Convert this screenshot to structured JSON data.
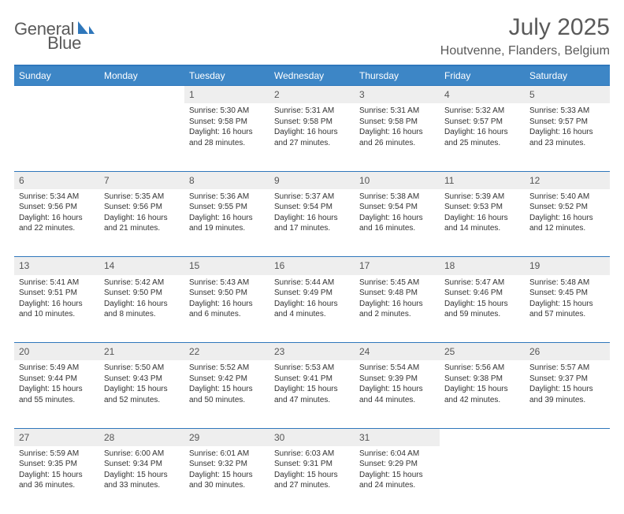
{
  "brand": {
    "word1": "General",
    "word2": "Blue"
  },
  "title": "July 2025",
  "location": "Houtvenne, Flanders, Belgium",
  "colors": {
    "accent": "#3d86c6",
    "rule": "#2f77bb",
    "daynum_bg": "#eeeeee",
    "text": "#333333",
    "muted": "#5a5a5a"
  },
  "weekdays": [
    "Sunday",
    "Monday",
    "Tuesday",
    "Wednesday",
    "Thursday",
    "Friday",
    "Saturday"
  ],
  "weeks": [
    [
      null,
      null,
      {
        "n": "1",
        "sunrise": "5:30 AM",
        "sunset": "9:58 PM",
        "daylight": "16 hours and 28 minutes."
      },
      {
        "n": "2",
        "sunrise": "5:31 AM",
        "sunset": "9:58 PM",
        "daylight": "16 hours and 27 minutes."
      },
      {
        "n": "3",
        "sunrise": "5:31 AM",
        "sunset": "9:58 PM",
        "daylight": "16 hours and 26 minutes."
      },
      {
        "n": "4",
        "sunrise": "5:32 AM",
        "sunset": "9:57 PM",
        "daylight": "16 hours and 25 minutes."
      },
      {
        "n": "5",
        "sunrise": "5:33 AM",
        "sunset": "9:57 PM",
        "daylight": "16 hours and 23 minutes."
      }
    ],
    [
      {
        "n": "6",
        "sunrise": "5:34 AM",
        "sunset": "9:56 PM",
        "daylight": "16 hours and 22 minutes."
      },
      {
        "n": "7",
        "sunrise": "5:35 AM",
        "sunset": "9:56 PM",
        "daylight": "16 hours and 21 minutes."
      },
      {
        "n": "8",
        "sunrise": "5:36 AM",
        "sunset": "9:55 PM",
        "daylight": "16 hours and 19 minutes."
      },
      {
        "n": "9",
        "sunrise": "5:37 AM",
        "sunset": "9:54 PM",
        "daylight": "16 hours and 17 minutes."
      },
      {
        "n": "10",
        "sunrise": "5:38 AM",
        "sunset": "9:54 PM",
        "daylight": "16 hours and 16 minutes."
      },
      {
        "n": "11",
        "sunrise": "5:39 AM",
        "sunset": "9:53 PM",
        "daylight": "16 hours and 14 minutes."
      },
      {
        "n": "12",
        "sunrise": "5:40 AM",
        "sunset": "9:52 PM",
        "daylight": "16 hours and 12 minutes."
      }
    ],
    [
      {
        "n": "13",
        "sunrise": "5:41 AM",
        "sunset": "9:51 PM",
        "daylight": "16 hours and 10 minutes."
      },
      {
        "n": "14",
        "sunrise": "5:42 AM",
        "sunset": "9:50 PM",
        "daylight": "16 hours and 8 minutes."
      },
      {
        "n": "15",
        "sunrise": "5:43 AM",
        "sunset": "9:50 PM",
        "daylight": "16 hours and 6 minutes."
      },
      {
        "n": "16",
        "sunrise": "5:44 AM",
        "sunset": "9:49 PM",
        "daylight": "16 hours and 4 minutes."
      },
      {
        "n": "17",
        "sunrise": "5:45 AM",
        "sunset": "9:48 PM",
        "daylight": "16 hours and 2 minutes."
      },
      {
        "n": "18",
        "sunrise": "5:47 AM",
        "sunset": "9:46 PM",
        "daylight": "15 hours and 59 minutes."
      },
      {
        "n": "19",
        "sunrise": "5:48 AM",
        "sunset": "9:45 PM",
        "daylight": "15 hours and 57 minutes."
      }
    ],
    [
      {
        "n": "20",
        "sunrise": "5:49 AM",
        "sunset": "9:44 PM",
        "daylight": "15 hours and 55 minutes."
      },
      {
        "n": "21",
        "sunrise": "5:50 AM",
        "sunset": "9:43 PM",
        "daylight": "15 hours and 52 minutes."
      },
      {
        "n": "22",
        "sunrise": "5:52 AM",
        "sunset": "9:42 PM",
        "daylight": "15 hours and 50 minutes."
      },
      {
        "n": "23",
        "sunrise": "5:53 AM",
        "sunset": "9:41 PM",
        "daylight": "15 hours and 47 minutes."
      },
      {
        "n": "24",
        "sunrise": "5:54 AM",
        "sunset": "9:39 PM",
        "daylight": "15 hours and 44 minutes."
      },
      {
        "n": "25",
        "sunrise": "5:56 AM",
        "sunset": "9:38 PM",
        "daylight": "15 hours and 42 minutes."
      },
      {
        "n": "26",
        "sunrise": "5:57 AM",
        "sunset": "9:37 PM",
        "daylight": "15 hours and 39 minutes."
      }
    ],
    [
      {
        "n": "27",
        "sunrise": "5:59 AM",
        "sunset": "9:35 PM",
        "daylight": "15 hours and 36 minutes."
      },
      {
        "n": "28",
        "sunrise": "6:00 AM",
        "sunset": "9:34 PM",
        "daylight": "15 hours and 33 minutes."
      },
      {
        "n": "29",
        "sunrise": "6:01 AM",
        "sunset": "9:32 PM",
        "daylight": "15 hours and 30 minutes."
      },
      {
        "n": "30",
        "sunrise": "6:03 AM",
        "sunset": "9:31 PM",
        "daylight": "15 hours and 27 minutes."
      },
      {
        "n": "31",
        "sunrise": "6:04 AM",
        "sunset": "9:29 PM",
        "daylight": "15 hours and 24 minutes."
      },
      null,
      null
    ]
  ],
  "labels": {
    "sunrise": "Sunrise:",
    "sunset": "Sunset:",
    "daylight": "Daylight:"
  }
}
